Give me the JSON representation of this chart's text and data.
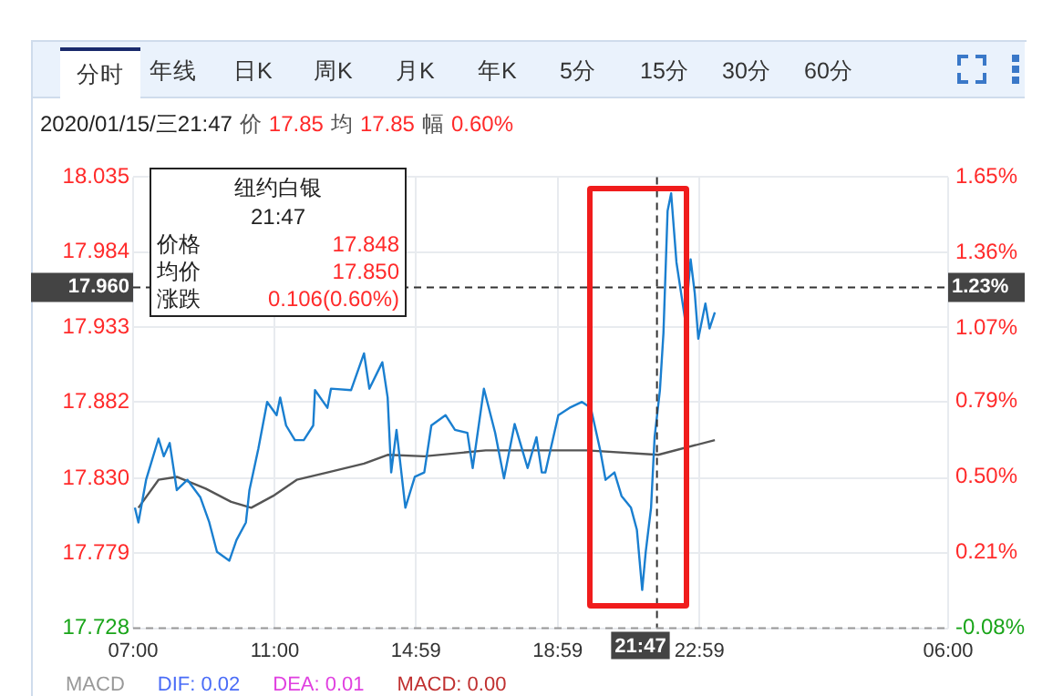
{
  "chart_data": {
    "type": "line",
    "annotations": [
      "分时",
      "年线",
      "日K",
      "周K",
      "月K",
      "年K",
      "5分",
      "15分",
      "30分",
      "60分",
      "2020/01/15/三21:47",
      "价",
      "17.85",
      "均",
      "17.85",
      "幅",
      "0.60%",
      "纽约白银",
      "21:47",
      "价格",
      "17.848",
      "均价",
      "17.850",
      "涨跌",
      "0.106(0.60%)",
      "MACD",
      "DIF: 0.02",
      "DEA: 0.01",
      "MACD: 0.00",
      "1.23%"
    ],
    "series": [
      {
        "color": "#1a7fd0",
        "x": [
          "2020-01-15T07:03",
          "2020-01-15T07:09",
          "2020-01-15T07:22",
          "2020-01-15T07:43",
          "2020-01-15T07:52",
          "2020-01-15T08:02",
          "2020-01-15T08:14",
          "2020-01-15T08:32",
          "2020-01-15T08:54",
          "2020-01-15T09:09",
          "2020-01-15T09:22",
          "2020-01-15T09:43",
          "2020-01-15T09:55",
          "2020-01-15T10:11",
          "2020-01-15T10:17",
          "2020-01-15T10:32",
          "2020-01-15T10:47",
          "2020-01-15T11:03",
          "2020-01-15T11:09",
          "2020-01-15T11:19",
          "2020-01-15T11:34",
          "2020-01-15T11:49",
          "2020-01-15T12:05",
          "2020-01-15T12:08",
          "2020-01-15T12:29",
          "2020-01-15T12:35",
          "2020-01-15T13:09",
          "2020-01-15T13:31",
          "2020-01-15T13:40",
          "2020-01-15T14:02",
          "2020-01-15T14:11",
          "2020-01-15T14:17",
          "2020-01-15T14:26",
          "2020-01-15T14:41",
          "2020-01-15T14:57",
          "2020-01-15T15:13",
          "2020-01-15T15:25",
          "2020-01-15T15:49",
          "2020-01-15T16:05",
          "2020-01-15T16:26",
          "2020-01-15T16:35",
          "2020-01-15T16:54",
          "2020-01-15T17:13",
          "2020-01-15T17:28",
          "2020-01-15T17:46",
          "2020-01-15T18:08",
          "2020-01-15T18:23",
          "2020-01-15T18:32",
          "2020-01-15T18:38",
          "2020-01-15T19:00",
          "2020-01-15T19:19",
          "2020-01-15T19:40",
          "2020-01-15T19:55",
          "2020-01-15T20:11",
          "2020-01-15T20:20",
          "2020-01-15T20:35",
          "2020-01-15T20:47",
          "2020-01-15T21:03",
          "2020-01-15T21:13",
          "2020-01-15T21:22",
          "2020-01-15T21:28",
          "2020-01-15T21:37",
          "2020-01-15T21:43",
          "2020-01-15T21:52",
          "2020-01-15T21:58",
          "2020-01-15T22:05",
          "2020-01-15T22:11",
          "2020-01-15T22:20",
          "2020-01-15T22:29",
          "2020-01-15T22:35",
          "2020-01-15T22:44",
          "2020-01-15T22:51",
          "2020-01-15T22:57",
          "2020-01-15T23:09",
          "2020-01-15T23:16",
          "2020-01-15T23:25"
        ],
        "values": [
          17.81,
          17.8,
          17.829,
          17.857,
          17.845,
          17.854,
          17.822,
          17.829,
          17.817,
          17.8,
          17.78,
          17.774,
          17.788,
          17.8,
          17.822,
          17.85,
          17.882,
          17.873,
          17.885,
          17.866,
          17.856,
          17.856,
          17.866,
          17.89,
          17.878,
          17.891,
          17.89,
          17.915,
          17.891,
          17.909,
          17.885,
          17.834,
          17.863,
          17.81,
          17.831,
          17.834,
          17.866,
          17.873,
          17.863,
          17.861,
          17.837,
          17.891,
          17.861,
          17.83,
          17.867,
          17.837,
          17.858,
          17.834,
          17.834,
          17.873,
          17.878,
          17.882,
          17.878,
          17.849,
          17.829,
          17.834,
          17.818,
          17.81,
          17.795,
          17.754,
          17.78,
          17.81,
          17.858,
          17.89,
          17.929,
          18.012,
          18.024,
          17.977,
          17.953,
          17.937,
          17.979,
          17.956,
          17.925,
          17.949,
          17.932,
          17.943
        ]
      },
      {
        "color": "#555555",
        "x": [
          "2020-01-15T07:09",
          "2020-01-15T07:43",
          "2020-01-15T08:14",
          "2020-01-15T09:03",
          "2020-01-15T09:46",
          "2020-01-15T10:20",
          "2020-01-15T10:57",
          "2020-01-15T11:37",
          "2020-01-15T12:29",
          "2020-01-15T13:31",
          "2020-01-15T14:11",
          "2020-01-15T15:13",
          "2020-01-15T16:57",
          "2020-01-15T18:38",
          "2020-01-15T19:49",
          "2020-01-15T21:49",
          "2020-01-15T23:25"
        ],
        "values": [
          17.81,
          17.829,
          17.831,
          17.823,
          17.814,
          17.81,
          17.818,
          17.829,
          17.834,
          17.84,
          17.846,
          17.845,
          17.849,
          17.849,
          17.849,
          17.846,
          17.856
        ]
      }
    ],
    "xlim": [
      "2020-01-15T07:00",
      "2020-01-16T06:00"
    ],
    "xticks": [
      {
        "value": "2020-01-15T07:00",
        "label": "07:00"
      },
      {
        "value": "2020-01-15T11:00",
        "label": "11:00"
      },
      {
        "value": "2020-01-15T14:59",
        "label": "14:59"
      },
      {
        "value": "2020-01-15T18:59",
        "label": "18:59"
      },
      {
        "value": "2020-01-15T22:59",
        "label": "22:59"
      },
      {
        "value": "2020-01-16T06:00",
        "label": "06:00"
      }
    ],
    "ylim": [
      17.728,
      18.035
    ],
    "yticks": [
      17.728,
      17.779,
      {
        "value": 17.83,
        "label": "17.830"
      },
      17.882,
      17.933,
      17.984,
      18.035
    ],
    "y2lim": [
      -0.08,
      1.65
    ],
    "y2ticks": [
      {
        "value": -0.08,
        "label": "-0.08%"
      },
      {
        "value": 0.21,
        "label": "0.21%"
      },
      {
        "value": 0.5,
        "label": "0.50%"
      },
      {
        "value": 0.79,
        "label": "0.79%"
      },
      {
        "value": 1.07,
        "label": "1.07%"
      },
      {
        "value": 1.36,
        "label": "1.36%"
      },
      {
        "value": 1.65,
        "label": "1.65%"
      }
    ],
    "ref_lines": [
      {
        "axis": "y",
        "value": 17.96,
        "label": "17.960",
        "color": "#333333",
        "line_style": "dashed"
      },
      {
        "axis": "x",
        "value": "2020-01-15T21:47",
        "label": "21:47",
        "color": "#333333",
        "line_style": "dashed"
      },
      {
        "axis": "y",
        "value": 17.728,
        "color": "#999999",
        "line_style": "dashed"
      }
    ],
    "grid": true,
    "legend": false,
    "marker": "none",
    "line_style": "solid"
  }
}
